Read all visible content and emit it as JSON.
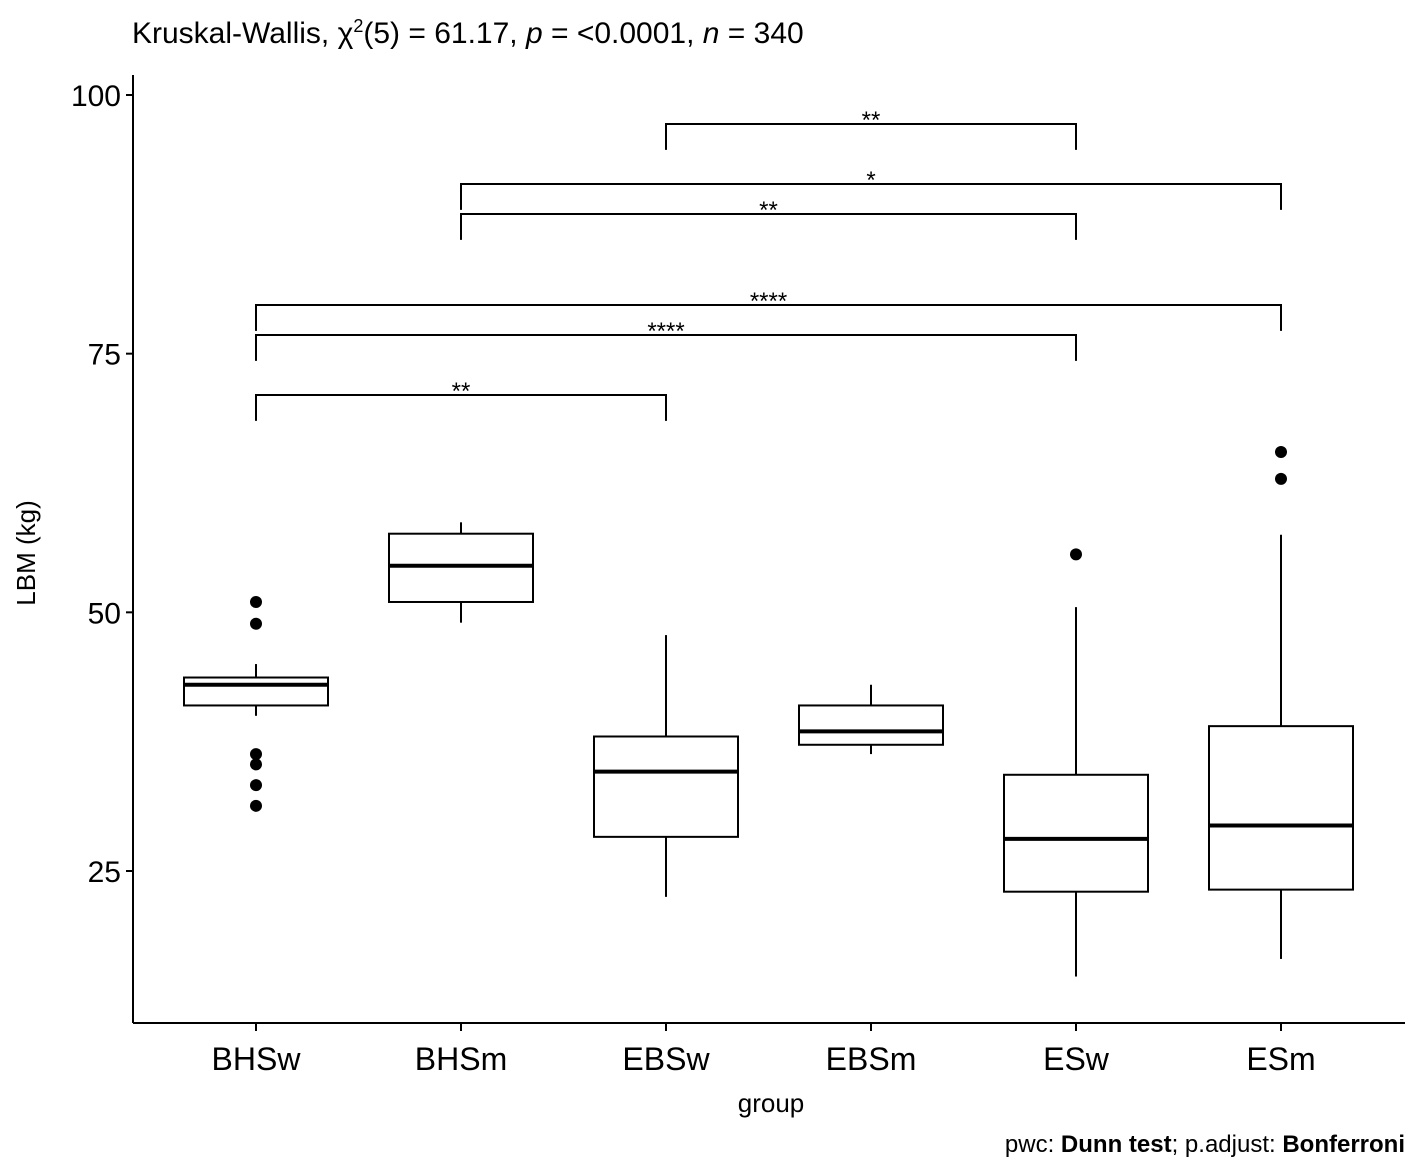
{
  "title": {
    "prefix": "Kruskal-Wallis, ",
    "chi": "χ",
    "sup": "2",
    "df": "(5) = 61.17, ",
    "p_label": "p",
    "p_value": " = <0.0001, ",
    "n_label": "n",
    "n_value": " = 340"
  },
  "caption": {
    "pwc_prefix": "pwc: ",
    "pwc_method": "Dunn test",
    "adjust_prefix": "; p.adjust: ",
    "adjust_method": "Bonferroni"
  },
  "chart_data": {
    "type": "boxplot",
    "xlabel": "group",
    "ylabel": "LBM (kg)",
    "ylim": [
      11,
      102
    ],
    "yticks": [
      25,
      50,
      75,
      100
    ],
    "categories": [
      "BHSw",
      "BHSm",
      "EBSw",
      "EBSm",
      "ESw",
      "ESm"
    ],
    "boxes": [
      {
        "group": "BHSw",
        "whisker_low": 40,
        "q1": 41,
        "median": 43,
        "q3": 43.7,
        "whisker_high": 45,
        "outliers": [
          51,
          48.9,
          36.3,
          35.3,
          33.3,
          31.3
        ]
      },
      {
        "group": "BHSm",
        "whisker_low": 49,
        "q1": 51,
        "median": 54.5,
        "q3": 57.6,
        "whisker_high": 58.7,
        "outliers": []
      },
      {
        "group": "EBSw",
        "whisker_low": 22.5,
        "q1": 28.3,
        "median": 34.6,
        "q3": 38,
        "whisker_high": 47.8,
        "outliers": []
      },
      {
        "group": "EBSm",
        "whisker_low": 36.3,
        "q1": 37.2,
        "median": 38.5,
        "q3": 41,
        "whisker_high": 43,
        "outliers": []
      },
      {
        "group": "ESw",
        "whisker_low": 14.8,
        "q1": 23,
        "median": 28.1,
        "q3": 34.3,
        "whisker_high": 50.5,
        "outliers": [
          55.6
        ]
      },
      {
        "group": "ESm",
        "whisker_low": 16.5,
        "q1": 23.2,
        "median": 29.4,
        "q3": 39,
        "whisker_high": 57.5,
        "outliers": [
          65.5,
          62.9
        ]
      }
    ],
    "brackets": [
      {
        "from": "EBSw",
        "to": "ESw",
        "y": 97.2,
        "tip": 2.5,
        "label": "**"
      },
      {
        "from": "BHSm",
        "to": "ESm",
        "y": 91.4,
        "tip": 2.5,
        "label": "*"
      },
      {
        "from": "BHSm",
        "to": "ESw",
        "y": 88.5,
        "tip": 2.5,
        "label": "**"
      },
      {
        "from": "BHSw",
        "to": "ESm",
        "y": 79.7,
        "tip": 2.5,
        "label": "****"
      },
      {
        "from": "BHSw",
        "to": "ESw",
        "y": 76.8,
        "tip": 2.5,
        "label": "****"
      },
      {
        "from": "BHSw",
        "to": "EBSw",
        "y": 71.0,
        "tip": 2.5,
        "label": "**"
      }
    ]
  }
}
